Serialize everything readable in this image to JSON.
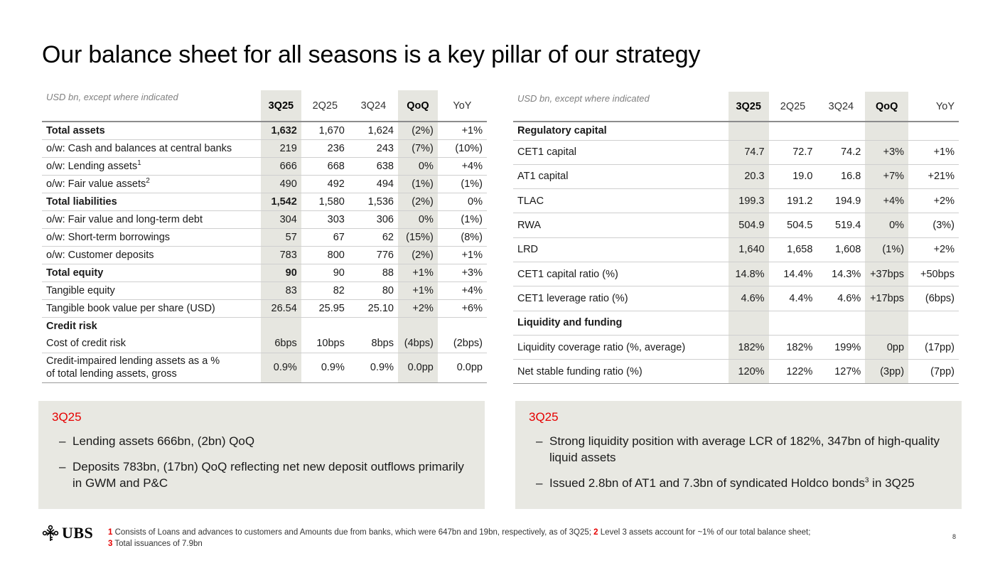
{
  "title": "Our balance sheet for all seasons is a key pillar of our strategy",
  "left_table": {
    "units": "USD bn, except where indicated",
    "columns": [
      "3Q25",
      "2Q25",
      "3Q24",
      "QoQ",
      "YoY"
    ],
    "rows": [
      {
        "label": "Total assets",
        "values": [
          "1,632",
          "1,670",
          "1,624",
          "(2%)",
          "+1%"
        ]
      },
      {
        "label": "o/w: Cash and balances at central banks",
        "values": [
          "219",
          "236",
          "243",
          "(7%)",
          "(10%)"
        ]
      },
      {
        "label": "o/w: Lending assets",
        "sup": "1",
        "values": [
          "666",
          "668",
          "638",
          "0%",
          "+4%"
        ]
      },
      {
        "label": "o/w: Fair value assets",
        "sup": "2",
        "values": [
          "490",
          "492",
          "494",
          "(1%)",
          "(1%)"
        ]
      },
      {
        "label": "Total liabilities",
        "values": [
          "1,542",
          "1,580",
          "1,536",
          "(2%)",
          "0%"
        ]
      },
      {
        "label": "o/w: Fair value and long-term debt",
        "values": [
          "304",
          "303",
          "306",
          "0%",
          "(1%)"
        ]
      },
      {
        "label": "o/w: Short-term borrowings",
        "values": [
          "57",
          "67",
          "62",
          "(15%)",
          "(8%)"
        ]
      },
      {
        "label": "o/w: Customer deposits",
        "values": [
          "783",
          "800",
          "776",
          "(2%)",
          "+1%"
        ]
      },
      {
        "label": "Total equity",
        "values": [
          "90",
          "90",
          "88",
          "+1%",
          "+3%"
        ]
      },
      {
        "label": "Tangible equity",
        "values": [
          "83",
          "82",
          "80",
          "+1%",
          "+4%"
        ]
      },
      {
        "label": "Tangible book value per share (USD)",
        "values": [
          "26.54",
          "25.95",
          "25.10",
          "+2%",
          "+6%"
        ]
      },
      {
        "label": "Credit risk"
      },
      {
        "label": "Cost of credit risk",
        "values": [
          "6bps",
          "10bps",
          "8bps",
          "(4bps)",
          "(2bps)"
        ]
      },
      {
        "label_line1": "Credit-impaired lending assets as a %",
        "label_line2": "of total lending assets, gross",
        "values": [
          "0.9%",
          "0.9%",
          "0.9%",
          "0.0pp",
          "0.0pp"
        ]
      }
    ]
  },
  "right_table": {
    "units": "USD bn, except where indicated",
    "columns": [
      "3Q25",
      "2Q25",
      "3Q24",
      "QoQ",
      "YoY"
    ],
    "rows": [
      {
        "label": "Regulatory capital"
      },
      {
        "label": "CET1 capital",
        "values": [
          "74.7",
          "72.7",
          "74.2",
          "+3%",
          "+1%"
        ]
      },
      {
        "label": "AT1 capital",
        "values": [
          "20.3",
          "19.0",
          "16.8",
          "+7%",
          "+21%"
        ]
      },
      {
        "label": "TLAC",
        "values": [
          "199.3",
          "191.2",
          "194.9",
          "+4%",
          "+2%"
        ]
      },
      {
        "label": "RWA",
        "values": [
          "504.9",
          "504.5",
          "519.4",
          "0%",
          "(3%)"
        ]
      },
      {
        "label": "LRD",
        "values": [
          "1,640",
          "1,658",
          "1,608",
          "(1%)",
          "+2%"
        ]
      },
      {
        "label": "CET1 capital ratio (%)",
        "values": [
          "14.8%",
          "14.4%",
          "14.3%",
          "+37bps",
          "+50bps"
        ]
      },
      {
        "label": "CET1 leverage ratio (%)",
        "values": [
          "4.6%",
          "4.4%",
          "4.6%",
          "+17bps",
          "(6bps)"
        ]
      },
      {
        "label": "Liquidity and funding"
      },
      {
        "label": "Liquidity coverage ratio (%, average)",
        "values": [
          "182%",
          "182%",
          "199%",
          "0pp",
          "(17pp)"
        ]
      },
      {
        "label": "Net stable funding ratio (%)",
        "values": [
          "120%",
          "122%",
          "127%",
          "(3pp)",
          "(7pp)"
        ]
      }
    ]
  },
  "box_left": {
    "heading": "3Q25",
    "bullets": [
      "Lending assets 666bn, (2bn) QoQ",
      "Deposits 783bn, (17bn) QoQ reflecting net new deposit outflows primarily in GWM and P&C"
    ]
  },
  "box_right": {
    "heading": "3Q25",
    "bullet1": "Strong liquidity position with average LCR of 182%, 347bn of high-quality liquid assets",
    "bullet2_pre": "Issued 2.8bn of AT1 and 7.3bn of syndicated Holdco bonds",
    "bullet2_sup": "3",
    "bullet2_post": " in 3Q25"
  },
  "footer": {
    "logo": "UBS",
    "fn1_num": "1",
    "fn1": " Consists of Loans and advances to customers and Amounts due from banks, which were 647bn and 19bn, respectively, as of 3Q25; ",
    "fn2_num": "2",
    "fn2": " Level 3 assets account for ~1% of our total balance sheet;",
    "fn3_num": "3",
    "fn3": " Total issuances of 7.9bn",
    "page": "8"
  },
  "colors": {
    "accent": "#e60000",
    "highlight_column": "#e6e6e0",
    "box_bg": "#e8e8e2"
  }
}
